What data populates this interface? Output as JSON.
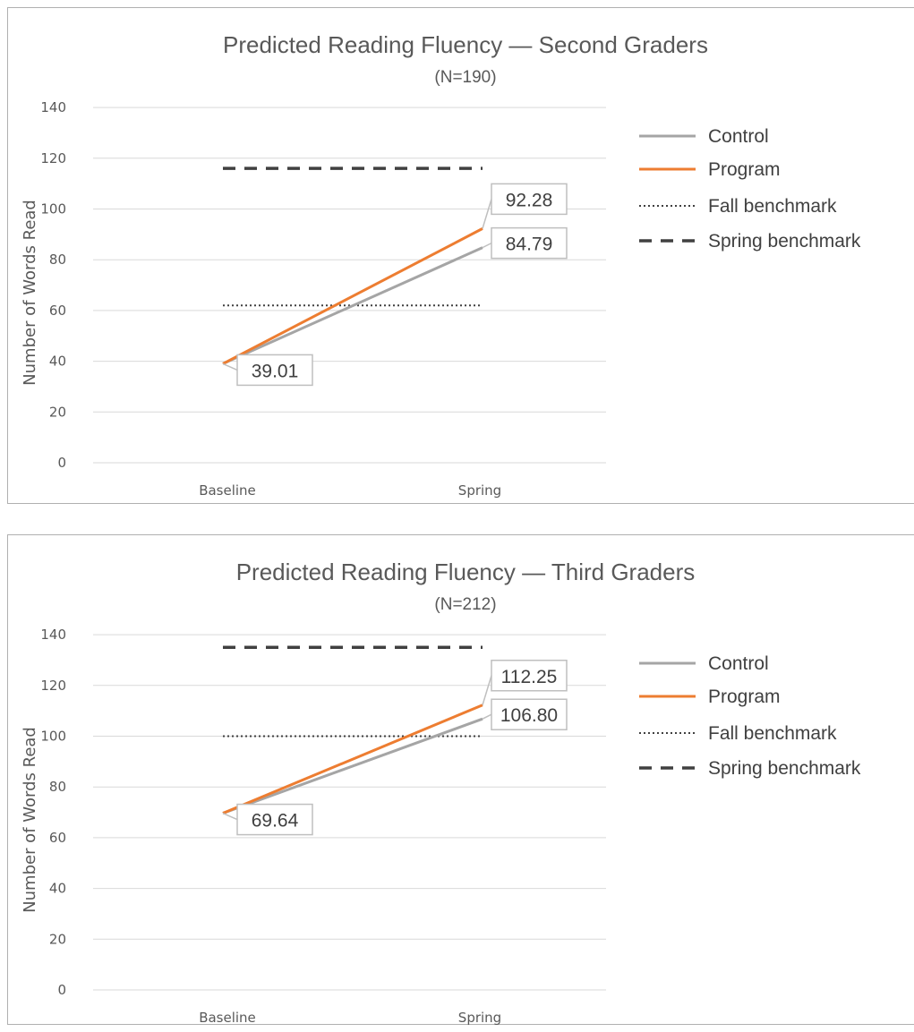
{
  "chart_data": [
    {
      "type": "line",
      "title": "Predicted Reading Fluency — Second Graders",
      "subtitle": "(N=190)",
      "xlabel": "",
      "ylabel": "Number of Words Read",
      "categories": [
        "Baseline",
        "Spring"
      ],
      "ylim": [
        0,
        140
      ],
      "yticks": [
        "0",
        "20",
        "40",
        "60",
        "80",
        "100",
        "120",
        "140"
      ],
      "grid": true,
      "legend_position": "right",
      "series": [
        {
          "name": "Control",
          "values": [
            39.01,
            84.79
          ],
          "color": "#a5a5a5",
          "style": "solid"
        },
        {
          "name": "Program",
          "values": [
            39.01,
            92.28
          ],
          "color": "#ed7d31",
          "style": "solid"
        },
        {
          "name": "Fall benchmark",
          "values": [
            62,
            62
          ],
          "color": "#404040",
          "style": "dotted"
        },
        {
          "name": "Spring benchmark",
          "values": [
            116,
            116
          ],
          "color": "#404040",
          "style": "dashed"
        }
      ],
      "data_labels": [
        {
          "text": "92.28",
          "series": "Program",
          "point": 1
        },
        {
          "text": "84.79",
          "series": "Control",
          "point": 1
        },
        {
          "text": "39.01",
          "series": "Control",
          "point": 0
        }
      ]
    },
    {
      "type": "line",
      "title": "Predicted Reading Fluency — Third Graders",
      "subtitle": "(N=212)",
      "xlabel": "",
      "ylabel": "Number of Words Read",
      "categories": [
        "Baseline",
        "Spring"
      ],
      "ylim": [
        0,
        140
      ],
      "yticks": [
        "0",
        "20",
        "40",
        "60",
        "80",
        "100",
        "120",
        "140"
      ],
      "grid": true,
      "legend_position": "right",
      "series": [
        {
          "name": "Control",
          "values": [
            69.64,
            106.8
          ],
          "color": "#a5a5a5",
          "style": "solid"
        },
        {
          "name": "Program",
          "values": [
            69.64,
            112.25
          ],
          "color": "#ed7d31",
          "style": "solid"
        },
        {
          "name": "Fall benchmark",
          "values": [
            100,
            100
          ],
          "color": "#404040",
          "style": "dotted"
        },
        {
          "name": "Spring benchmark",
          "values": [
            135,
            135
          ],
          "color": "#404040",
          "style": "dashed"
        }
      ],
      "data_labels": [
        {
          "text": "112.25",
          "series": "Program",
          "point": 1
        },
        {
          "text": "106.80",
          "series": "Control",
          "point": 1
        },
        {
          "text": "69.64",
          "series": "Control",
          "point": 0
        }
      ]
    }
  ]
}
